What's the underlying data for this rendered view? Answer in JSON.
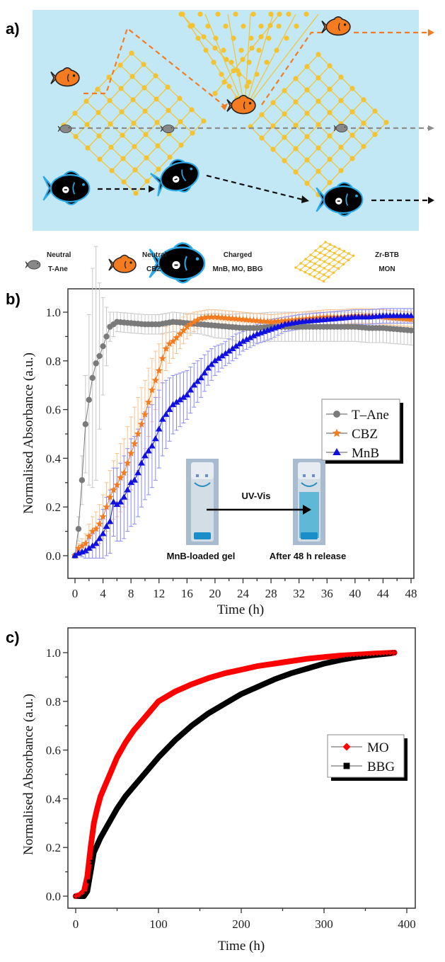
{
  "figure": {
    "panel_a": {
      "label": "a)",
      "background_color": "#c2e8f6",
      "mesh_color": "#f5c230",
      "key": [
        {
          "icon": "small-gray-fish-icon",
          "line1": "Neutral",
          "line2": "T-Ane"
        },
        {
          "icon": "orange-fish-icon",
          "line1": "Neutral",
          "line2": "CBZ"
        },
        {
          "icon": "charged-black-fish-icon",
          "line1": "Charged",
          "line2": "MnB, MO, BBG"
        },
        {
          "icon": "mesh-icon",
          "line1": "Zr-BTB",
          "line2": "MON"
        }
      ]
    },
    "panel_b": {
      "label": "b)",
      "inset": {
        "arrow_label": "UV-Vis",
        "left_caption": "MnB-loaded gel",
        "right_caption": "After 48 h release"
      }
    },
    "panel_c": {
      "label": "c)"
    }
  },
  "chart_data": [
    {
      "type": "line",
      "panel": "b",
      "title": "",
      "xlabel": "Time (h)",
      "ylabel": "Normalised Absorbance (a.u.)",
      "xlim": [
        -1,
        49
      ],
      "ylim": [
        -0.05,
        1.08
      ],
      "xticks": [
        "0",
        "4",
        "8",
        "12",
        "16",
        "20",
        "24",
        "28",
        "32",
        "36",
        "40",
        "44",
        "48"
      ],
      "yticks": [
        "0.0",
        "0.2",
        "0.4",
        "0.6",
        "0.8",
        "1.0"
      ],
      "grid": false,
      "legend_position": "center-right",
      "series": [
        {
          "name": "T–Ane",
          "color": "#7a7a7a",
          "err_color": "#c8c8c8",
          "marker": "circle",
          "x": [
            0,
            0.5,
            1,
            1.5,
            2,
            2.5,
            3,
            3.5,
            4,
            4.5,
            5,
            6,
            8,
            10,
            12,
            14,
            16,
            18,
            20,
            22,
            24,
            26,
            28,
            30,
            32,
            34,
            36,
            38,
            40,
            42,
            44,
            46,
            48
          ],
          "y": [
            0,
            0.11,
            0.31,
            0.54,
            0.64,
            0.73,
            0.79,
            0.82,
            0.86,
            0.9,
            0.94,
            0.96,
            0.955,
            0.95,
            0.95,
            0.96,
            0.955,
            0.95,
            0.945,
            0.94,
            0.935,
            0.935,
            0.94,
            0.94,
            0.94,
            0.94,
            0.94,
            0.94,
            0.94,
            0.935,
            0.935,
            0.93,
            0.925
          ],
          "err": [
            0,
            0.05,
            0.1,
            0.2,
            0.35,
            0.45,
            0.48,
            0.3,
            0.2,
            0.12,
            0.06,
            0.04,
            0.04,
            0.04,
            0.04,
            0.04,
            0.04,
            0.04,
            0.05,
            0.05,
            0.06,
            0.06,
            0.06,
            0.06,
            0.06,
            0.06,
            0.06,
            0.06,
            0.06,
            0.06,
            0.06,
            0.06,
            0.06
          ]
        },
        {
          "name": "CBZ",
          "color": "#f47b20",
          "err_color": "#f9c08c",
          "marker": "star",
          "x": [
            0,
            0.5,
            1,
            1.5,
            2,
            2.5,
            3,
            3.5,
            4,
            4.5,
            5,
            5.5,
            6,
            6.5,
            7,
            7.5,
            8,
            8.5,
            9,
            9.5,
            10,
            10.5,
            11,
            11.5,
            12,
            12.5,
            13,
            13.5,
            14,
            15,
            16,
            17,
            18,
            19,
            20,
            22,
            24,
            26,
            28,
            30,
            32,
            34,
            36,
            38,
            40,
            42,
            44,
            46,
            48
          ],
          "y": [
            0,
            0.03,
            0.04,
            0.05,
            0.08,
            0.1,
            0.11,
            0.13,
            0.16,
            0.2,
            0.24,
            0.27,
            0.29,
            0.32,
            0.34,
            0.38,
            0.42,
            0.46,
            0.5,
            0.54,
            0.58,
            0.63,
            0.68,
            0.72,
            0.76,
            0.81,
            0.85,
            0.87,
            0.88,
            0.91,
            0.94,
            0.96,
            0.975,
            0.98,
            0.98,
            0.975,
            0.97,
            0.965,
            0.96,
            0.965,
            0.97,
            0.975,
            0.98,
            0.98,
            0.985,
            0.985,
            0.98,
            0.975,
            0.97
          ],
          "err": [
            0,
            0.02,
            0.03,
            0.04,
            0.05,
            0.06,
            0.07,
            0.08,
            0.09,
            0.1,
            0.11,
            0.12,
            0.13,
            0.14,
            0.14,
            0.15,
            0.15,
            0.15,
            0.15,
            0.15,
            0.14,
            0.14,
            0.13,
            0.12,
            0.11,
            0.1,
            0.09,
            0.08,
            0.07,
            0.06,
            0.05,
            0.04,
            0.03,
            0.03,
            0.03,
            0.03,
            0.03,
            0.03,
            0.03,
            0.03,
            0.03,
            0.03,
            0.03,
            0.03,
            0.03,
            0.03,
            0.03,
            0.03,
            0.03
          ]
        },
        {
          "name": "MnB",
          "color": "#1010e0",
          "err_color": "#8a8af5",
          "marker": "triangle",
          "x": [
            0,
            0.5,
            1,
            1.5,
            2,
            2.5,
            3,
            3.5,
            4,
            4.5,
            5,
            5.5,
            6,
            6.5,
            7,
            7.5,
            8,
            8.5,
            9,
            9.5,
            10,
            10.5,
            11,
            11.5,
            12,
            12.5,
            13,
            13.5,
            14,
            15,
            16,
            17,
            18,
            19,
            20,
            21,
            22,
            23,
            24,
            26,
            28,
            30,
            32,
            34,
            36,
            38,
            40,
            42,
            44,
            46,
            48
          ],
          "y": [
            0,
            0.01,
            0.015,
            0.02,
            0.03,
            0.04,
            0.05,
            0.07,
            0.09,
            0.12,
            0.14,
            0.22,
            0.21,
            0.22,
            0.24,
            0.27,
            0.3,
            0.31,
            0.34,
            0.38,
            0.41,
            0.43,
            0.45,
            0.48,
            0.52,
            0.56,
            0.58,
            0.6,
            0.62,
            0.64,
            0.66,
            0.7,
            0.73,
            0.77,
            0.8,
            0.82,
            0.84,
            0.86,
            0.88,
            0.91,
            0.93,
            0.95,
            0.96,
            0.965,
            0.97,
            0.975,
            0.98,
            0.98,
            0.985,
            0.985,
            0.985
          ],
          "err": [
            0,
            0.01,
            0.02,
            0.03,
            0.04,
            0.05,
            0.06,
            0.08,
            0.1,
            0.12,
            0.13,
            0.14,
            0.15,
            0.16,
            0.17,
            0.17,
            0.18,
            0.18,
            0.18,
            0.18,
            0.18,
            0.18,
            0.17,
            0.17,
            0.16,
            0.15,
            0.14,
            0.13,
            0.12,
            0.11,
            0.1,
            0.09,
            0.08,
            0.07,
            0.06,
            0.05,
            0.05,
            0.05,
            0.04,
            0.04,
            0.04,
            0.03,
            0.03,
            0.03,
            0.03,
            0.03,
            0.03,
            0.03,
            0.03,
            0.03,
            0.03
          ]
        }
      ]
    },
    {
      "type": "line",
      "panel": "c",
      "title": "",
      "xlabel": "Time (h)",
      "ylabel": "Normalised Absorbance (a.u.)",
      "xlim": [
        -10,
        410
      ],
      "ylim": [
        -0.05,
        1.09
      ],
      "xticks": [
        "0",
        "100",
        "200",
        "300",
        "400"
      ],
      "yticks": [
        "0.0",
        "0.2",
        "0.4",
        "0.6",
        "0.8",
        "1.0"
      ],
      "grid": false,
      "legend_position": "center-right",
      "series": [
        {
          "name": "MO",
          "color": "#ff0000",
          "marker": "diamond",
          "x": [
            0,
            5,
            10,
            14,
            18,
            22,
            26,
            30,
            35,
            40,
            50,
            60,
            70,
            80,
            90,
            100,
            120,
            140,
            160,
            180,
            200,
            220,
            240,
            260,
            280,
            300,
            320,
            340,
            360,
            380,
            385
          ],
          "y": [
            0,
            0.005,
            0.02,
            0.08,
            0.2,
            0.3,
            0.36,
            0.41,
            0.45,
            0.49,
            0.57,
            0.63,
            0.68,
            0.72,
            0.76,
            0.8,
            0.84,
            0.87,
            0.895,
            0.915,
            0.93,
            0.945,
            0.955,
            0.965,
            0.975,
            0.982,
            0.988,
            0.992,
            0.996,
            0.999,
            1.0
          ]
        },
        {
          "name": "BBG",
          "color": "#000000",
          "marker": "square",
          "x": [
            0,
            5,
            10,
            14,
            18,
            22,
            26,
            30,
            40,
            50,
            60,
            70,
            80,
            90,
            100,
            120,
            140,
            160,
            180,
            200,
            220,
            240,
            260,
            280,
            300,
            320,
            340,
            360,
            380,
            385
          ],
          "y": [
            0,
            0,
            0.0,
            0.02,
            0.1,
            0.18,
            0.21,
            0.24,
            0.3,
            0.36,
            0.41,
            0.45,
            0.49,
            0.53,
            0.57,
            0.64,
            0.7,
            0.75,
            0.79,
            0.83,
            0.86,
            0.89,
            0.915,
            0.935,
            0.955,
            0.97,
            0.982,
            0.99,
            0.997,
            1.0
          ]
        }
      ]
    }
  ]
}
